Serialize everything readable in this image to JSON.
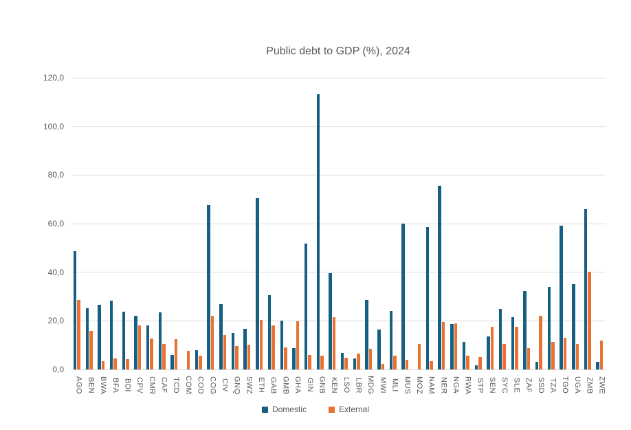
{
  "title": "Public debt to GDP (%), 2024",
  "chart_data": {
    "type": "bar",
    "title": "Public debt to GDP (%), 2024",
    "categories": [
      "AGO",
      "BEN",
      "BWA",
      "BFA",
      "BDI",
      "CPV",
      "CMR",
      "CAF",
      "TCD",
      "COM",
      "COD",
      "COG",
      "CIV",
      "GNQ",
      "SWZ",
      "ETH",
      "GAB",
      "GMB",
      "GHA",
      "GIN",
      "GNB",
      "KEN",
      "LSO",
      "LBR",
      "MDG",
      "MWI",
      "MLI",
      "MUS",
      "MOZ",
      "NAM",
      "NER",
      "NGA",
      "RWA",
      "STP",
      "SEN",
      "SYC",
      "SLE",
      "ZAF",
      "SSD",
      "TZA",
      "TGO",
      "UGA",
      "ZMB",
      "ZWE"
    ],
    "series": [
      {
        "name": "Domestic",
        "color": "#156082",
        "values": [
          48.8,
          25.3,
          26.5,
          28.2,
          23.7,
          22.1,
          18.1,
          23.5,
          5.9,
          0,
          7.8,
          67.7,
          26.9,
          15.1,
          16.8,
          70.4,
          30.5,
          20.1,
          8.7,
          51.8,
          113.1,
          39.7,
          6.8,
          4.5,
          28.7,
          16.5,
          24.0,
          60.1,
          0,
          58.7,
          75.6,
          18.8,
          11.2,
          1.6,
          13.5,
          25.0,
          21.6,
          32.2,
          3.1,
          34.1,
          59.1,
          35.2,
          65.9,
          3.2
        ]
      },
      {
        "name": "External",
        "color": "#E97132",
        "values": [
          28.6,
          15.9,
          3.4,
          4.4,
          4.3,
          18.2,
          12.8,
          10.5,
          12.5,
          7.6,
          5.6,
          22.2,
          14.2,
          9.6,
          10.1,
          20.5,
          18.0,
          9.2,
          19.7,
          5.9,
          5.7,
          21.5,
          4.7,
          6.6,
          8.5,
          2.2,
          5.8,
          3.9,
          10.6,
          3.5,
          19.6,
          19.1,
          5.7,
          5.1,
          17.6,
          10.5,
          17.5,
          8.8,
          22.1,
          11.3,
          13.1,
          10.6,
          40.3,
          11.9
        ]
      }
    ],
    "ylim": [
      0,
      120
    ],
    "ytick_step": 20,
    "ytick_labels": [
      "0,0",
      "20,0",
      "40,0",
      "60,0",
      "80,0",
      "100,0",
      "120,0"
    ],
    "decimal_separator": ",",
    "grid": "horizontal",
    "legend_position": "bottom-center",
    "xlabel": "",
    "ylabel": ""
  },
  "legend": {
    "items": [
      {
        "label": "Domestic",
        "color": "#156082"
      },
      {
        "label": "External",
        "color": "#E97132"
      }
    ]
  },
  "colors": {
    "domestic": "#156082",
    "external": "#E97132",
    "gridline": "#D9D9D9",
    "text": "#595959",
    "background": "#FFFFFF"
  }
}
